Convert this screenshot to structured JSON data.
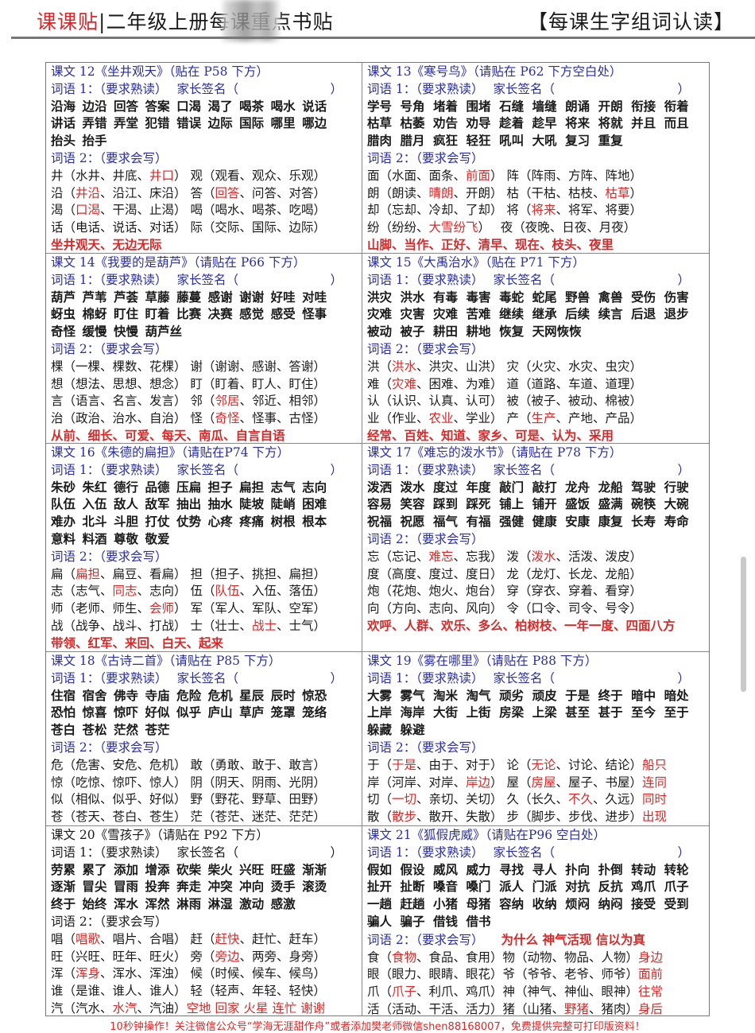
{
  "header": {
    "brand": "课课贴",
    "title": "|二年级上册每课重点书贴",
    "right_title": "【每课生字组词认读】"
  },
  "labels": {
    "vocab1": "词语 1：（要求熟读）",
    "sign": "家长签名（",
    "sign_close": "）",
    "vocab2": "词语 2：（要求会写）"
  },
  "colors": {
    "blue": "#2a2ea0",
    "red": "#d42a2a"
  },
  "lessons": [
    {
      "title": "课文 12《坐井观天》（贴在 P58 下方）",
      "color": "blue",
      "words": [
        "沿海",
        "边沿",
        "回答",
        "答案",
        "口渴",
        "渴了",
        "喝茶",
        "喝水",
        "说话",
        "讲话",
        "弄错",
        "弄堂",
        "犯错",
        "错误",
        "边际",
        "国际",
        "哪里",
        "哪边",
        "抬头",
        "抬手"
      ],
      "vocab2_extra": "",
      "rows": [
        [
          "井（水井、井底、",
          "井口",
          "） 观（观看、观众、乐观）"
        ],
        [
          "沿（",
          "井沿",
          "、沿江、床沿） 答（",
          "回答",
          "、问答、对答）"
        ],
        [
          "渴（",
          "口渴",
          "、干渴、止渴） 喝（喝水、喝茶、吃喝）"
        ],
        [
          "话（电话、说话、对话） 际（交际、国际、边际）"
        ]
      ],
      "final": "坐井观天、无边无际"
    },
    {
      "title": "课文 13《寒号鸟》（请贴在 P62 下方空白处）",
      "color": "blue",
      "words": [
        "学号",
        "号角",
        "堵着",
        "围堵",
        "石缝",
        "墙缝",
        "朗诵",
        "开朗",
        "衔接",
        "衔着",
        "枯草",
        "枯萎",
        "劝告",
        "劝导",
        "趁着",
        "趁早",
        "将来",
        "将就",
        "并且",
        "而且",
        "腊肉",
        "腊月",
        "疯狂",
        "轻狂",
        "吼叫",
        "大吼",
        "复习",
        "重复"
      ],
      "vocab2_extra": "",
      "rows": [
        [
          "面（水面、面条、",
          "前面",
          "） 阵（阵雨、方阵、阵地）"
        ],
        [
          "朗（朗读、",
          "晴朗",
          "、开朗） 枯（干枯、枯枝、",
          "枯草",
          "）"
        ],
        [
          "却（忘却、冷却、了却） 将（",
          "将来",
          "、将军、将要）"
        ],
        [
          "纷（纷纷、",
          "大雪纷飞",
          "）　 夜（夜晚、日夜、月夜）"
        ]
      ],
      "final": "山脚、当作、正好、清早、现在、枝头、夜里"
    },
    {
      "title": "课文 14《我要的是葫芦》（请贴在 P66 下方）",
      "color": "blue",
      "words": [
        "葫芦",
        "芦苇",
        "芦荟",
        "草藤",
        "藤蔓",
        "感谢",
        "谢谢",
        "好哇",
        "对哇",
        "蚜虫",
        "棉蚜",
        "盯住",
        "盯着",
        "比赛",
        "决赛",
        "感觉",
        "感受",
        "怪事",
        "奇怪",
        "缓慢",
        "快慢",
        "葫芦丝"
      ],
      "vocab2_extra": "",
      "rows": [
        [
          "棵（一棵、棵数、花棵） 谢（谢谢、感谢、答谢）"
        ],
        [
          "想（想法、思想、想念） 盯（盯着、盯人、盯住）"
        ],
        [
          "言（语言、名言、发言） 邻（",
          "邻居",
          "、邻近、相邻）"
        ],
        [
          "治（政治、治水、自治） 怪（",
          "奇怪",
          "、怪事、古怪）"
        ]
      ],
      "final": "从前、细长、可爱、每天、南瓜、自言自语"
    },
    {
      "title": "课文 15《大禹治水》（贴在 P71 下方）",
      "color": "blue",
      "words": [
        "洪灾",
        "洪水",
        "有毒",
        "毒害",
        "毒蛇",
        "蛇尾",
        "野兽",
        "禽兽",
        "受伤",
        "伤害",
        "灾难",
        "灾害",
        "灾难",
        "苦难",
        "继续",
        "继承",
        "后续",
        "续言",
        "后退",
        "退步",
        "被动",
        "被子",
        "耕田",
        "耕地",
        "恢复",
        "天网恢恢"
      ],
      "vocab2_extra": "",
      "rows": [
        [
          "洪（",
          "洪水",
          "、洪灾、山洪） 灾（火灾、水灾、虫灾）"
        ],
        [
          "难（",
          "灾难",
          "、困难、为难） 道（道路、车道、道理）"
        ],
        [
          "认（认识、认真、认可） 被（被子、被动、棉被）"
        ],
        [
          "业（作业、",
          "农业",
          "、学业） 产（",
          "生产",
          "、产地、产品）"
        ]
      ],
      "final": "经常、百姓、知道、家乡、可是、认为、采用"
    },
    {
      "title": "课文 16《朱德的扁担》（请贴在P74 下方）",
      "color": "blue",
      "words": [
        "朱砂",
        "朱红",
        "德行",
        "品德",
        "压扁",
        "担子",
        "扁担",
        "志气",
        "志向",
        "队伍",
        "入伍",
        "敌人",
        "敌军",
        "抽出",
        "抽水",
        "陡坡",
        "陡峭",
        "困难",
        "难办",
        "北斗",
        "斗胆",
        "打仗",
        "仗势",
        "心疼",
        "疼痛",
        "树根",
        "根本",
        "意料",
        "料酒",
        "尊敬",
        "敬爱"
      ],
      "vocab2_extra": "",
      "rows": [
        [
          "扁（",
          "扁担",
          "、扁豆、看扁） 担（担子、挑担、扁担）"
        ],
        [
          "志（志气、",
          "同志",
          "、志向） 伍（",
          "队伍",
          "、入伍、落伍）"
        ],
        [
          "师（老师、师生、",
          "会师",
          "） 军（军人、军队、空军）"
        ],
        [
          "战（战争、战斗、打战） 士（壮士、",
          "战士",
          "、士气）"
        ]
      ],
      "final": "带领、红军、来回、白天、起来"
    },
    {
      "title": "课文 17《难忘的泼水节》（请贴在 P78 下方）",
      "color": "blue",
      "words": [
        "泼洒",
        "泼水",
        "度过",
        "年度",
        "敲门",
        "敲打",
        "龙舟",
        "龙船",
        "驾驶",
        "行驶",
        "容易",
        "笑容",
        "踩到",
        "踩死",
        "铺上",
        "铺开",
        "盛饭",
        "盛满",
        "碗筷",
        "大碗",
        "祝福",
        "祝愿",
        "福气",
        "有福",
        "强健",
        "健康",
        "安康",
        "康复",
        "长寿",
        "寿命"
      ],
      "vocab2_extra": "",
      "rows": [
        [
          "忘（忘记、",
          "难忘",
          "、忘我） 泼（",
          "泼水",
          "、活泼、泼皮）"
        ],
        [
          "度（高度、度过、度日） 龙（龙灯、长龙、龙船）"
        ],
        [
          "炮（花炮、炮火、炮台） 穿（穿衣、穿着、看穿）"
        ],
        [
          "向（方向、志向、风向） 令（口令、司令、号令）"
        ]
      ],
      "final": "欢呼、人群、欢乐、多么、柏树枝、一年一度、四面八方"
    },
    {
      "title": "课文 18《古诗二首》（请贴在 P85 下方）",
      "color": "blue",
      "words": [
        "住宿",
        "宿舍",
        "佛寺",
        "寺庙",
        "危险",
        "危机",
        "星辰",
        "辰时",
        "惊恐",
        "恐怕",
        "惊喜",
        "惊吓",
        "好似",
        "似乎",
        "庐山",
        "草庐",
        "笼罩",
        "笼络",
        "苍白",
        "苍松",
        "茫然",
        "苍茫"
      ],
      "vocab2_extra": "",
      "rows": [
        [
          "危（危害、安危、危机） 敢（勇敢、敢于、敢言）"
        ],
        [
          "惊（吃惊、惊吓、惊人） 阴（阴天、阴雨、光阴）"
        ],
        [
          "似（相似、似乎、好似） 野（野花、野草、田野）"
        ],
        [
          "苍（苍天、苍白、苍生） 茫（苍茫、迷茫、茫茫）"
        ]
      ],
      "final": ""
    },
    {
      "title": "课文 19《雾在哪里》（请贴在 P88 下方）",
      "color": "blue",
      "words": [
        "大雾",
        "雾气",
        "淘米",
        "淘气",
        "顽劣",
        "顽皮",
        "于是",
        "终于",
        "暗中",
        "暗处",
        "上岸",
        "海岸",
        "大街",
        "上街",
        "房梁",
        "上梁",
        "甚至",
        "甚于",
        "至今",
        "至于",
        "躲藏",
        "躲避"
      ],
      "vocab2_extra": "",
      "rows": [
        [
          "于（",
          "于是",
          "、由于、对于） 论（",
          "无论",
          "、讨论、结论）",
          "船只"
        ],
        [
          "岸（河岸、对岸、",
          "岸边",
          "） 屋（",
          "房屋",
          "、屋子、书屋）",
          "连同"
        ],
        [
          "切（",
          "一切",
          "、亲切、关切） 久（长久、",
          "不久",
          "、久远）",
          "同时"
        ],
        [
          "散（",
          "散步",
          "、散开、失散） 步（脚步、步伐、进步）",
          "出现"
        ]
      ],
      "final": ""
    },
    {
      "title": "课文 20《雪孩子》（请贴在 P92 下方）",
      "color": "black",
      "words": [
        "劳累",
        "累了",
        "添加",
        "增添",
        "砍柴",
        "柴火",
        "兴旺",
        "旺盛",
        "渐渐",
        "逐渐",
        "冒尖",
        "冒雨",
        "投奔",
        "奔走",
        "冲突",
        "冲向",
        "烫手",
        "滚烫",
        "终于",
        "始终",
        "浑水",
        "浑然",
        "淋雨",
        "淋湿",
        "激动",
        "感激"
      ],
      "vocab2_extra": "",
      "rows": [
        [
          "唱（",
          "唱歌",
          "、唱片、合唱） 赶（",
          "赶快",
          "、赶忙、赶车）"
        ],
        [
          "旺（兴旺、旺年、旺火） 旁（",
          "旁边",
          "、两旁、身旁）"
        ],
        [
          "浑（",
          "浑身",
          "、浑水、浑浊） 候（时候、候车、候鸟）"
        ],
        [
          "谁（是谁、谁人、谁人） 轻（轻声、年轻、轻快）"
        ],
        [
          "汽（汽水、",
          "水汽",
          "、汽油）",
          "空地 回家 火星 连忙 谢谢"
        ]
      ],
      "final": ""
    },
    {
      "title": "课文 21《狐假虎威》（请贴在P96 空白处）",
      "color": "blue",
      "words": [
        "假如",
        "假设",
        "威风",
        "威力",
        "寻找",
        "寻人",
        "扑向",
        "扑倒",
        "转动",
        "转轮",
        "扯开",
        "扯断",
        "嗓音",
        "嗓门",
        "派人",
        "门派",
        "对抗",
        "反抗",
        "鸡爪",
        "爪子",
        "一趟",
        "赶趟",
        "小猪",
        "母猪",
        "容纳",
        "收纳",
        "烦闷",
        "纳闷",
        "接受",
        "受到",
        "骗人",
        "骗子",
        "借钱",
        "借书"
      ],
      "vocab2_extra": "为什么 神气活现 信以为真",
      "rows": [
        [
          "食（",
          "食物",
          "、食品、食用）物（动物、物品、人物）",
          "身边"
        ],
        [
          "眼（眼力、眼睛、眼花）爷（爷爷、老爷、师爷）",
          "面前"
        ],
        [
          "爪（",
          "爪子",
          "、利爪、鸡爪）神（神气、神仙、眼神）",
          "往常"
        ],
        [
          "活（活动、干活、活力）猪（山猪、",
          "野猪",
          "、猪肉）",
          "身后"
        ]
      ],
      "final": ""
    }
  ],
  "footer": "10秒钟操作！关注微信公众号“学海无涯甜作舟”或者添加樊老师微信shen88168007，免费提供完整可打印版资料！"
}
